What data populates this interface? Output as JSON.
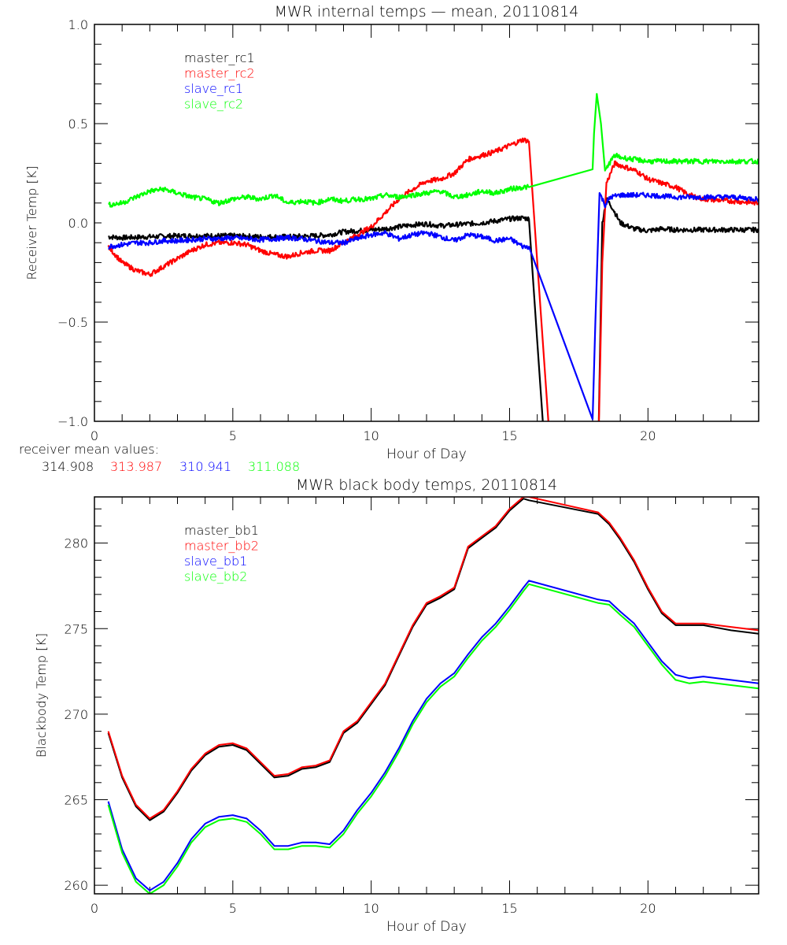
{
  "chart_data": [
    {
      "type": "line",
      "title": "MWR internal temps — mean, 20110814",
      "xlabel": "Hour of Day",
      "ylabel": "Receiver Temp [K]",
      "xlim": [
        0,
        24
      ],
      "ylim": [
        -1.0,
        1.0
      ],
      "xticks": [
        0,
        5,
        10,
        15,
        20
      ],
      "xtick_labels": [
        "0",
        "5",
        "10",
        "15",
        "20"
      ],
      "yticks": [
        -1.0,
        -0.5,
        0.0,
        0.5,
        1.0
      ],
      "ytick_labels": [
        "−1.0",
        "−0.5",
        "0.0",
        "0.5",
        "1.0"
      ],
      "grid": false,
      "legend_position": "top-left",
      "series": [
        {
          "name": "master_rc1",
          "color": "#000000",
          "x": [
            0.5,
            1,
            2,
            3,
            4,
            5,
            6,
            7,
            8,
            8.5,
            9,
            9.5,
            10,
            10.5,
            11,
            11.5,
            12,
            12.5,
            13,
            13.5,
            14,
            14.5,
            15,
            15.5,
            15.7,
            16.0,
            16.3,
            18.2,
            18.35,
            18.5,
            18.7,
            19,
            19.5,
            20,
            20.5,
            21,
            22,
            23,
            24
          ],
          "y": [
            -0.07,
            -0.075,
            -0.07,
            -0.065,
            -0.065,
            -0.065,
            -0.07,
            -0.07,
            -0.065,
            -0.06,
            -0.045,
            -0.04,
            -0.035,
            -0.03,
            -0.02,
            -0.01,
            -0.005,
            -0.015,
            -0.01,
            -0.005,
            0.0,
            0.01,
            0.02,
            0.025,
            0.02,
            -0.6,
            -1.2,
            -1.2,
            0.0,
            0.12,
            0.08,
            0.0,
            -0.03,
            -0.04,
            -0.03,
            -0.035,
            -0.035,
            -0.035,
            -0.035
          ]
        },
        {
          "name": "master_rc2",
          "color": "#ff0000",
          "x": [
            0.5,
            1,
            1.5,
            2,
            2.5,
            3,
            3.5,
            4,
            4.5,
            5,
            5.5,
            6,
            6.5,
            7,
            7.5,
            8,
            8.5,
            9,
            9.5,
            10,
            10.5,
            11,
            11.5,
            12,
            12.5,
            13,
            13.5,
            14,
            14.5,
            15,
            15.5,
            15.7,
            16.0,
            16.5,
            18.2,
            18.35,
            18.5,
            18.8,
            19.2,
            19.6,
            20,
            20.5,
            21,
            21.5,
            22,
            23,
            24
          ],
          "y": [
            -0.12,
            -0.2,
            -0.24,
            -0.26,
            -0.22,
            -0.18,
            -0.14,
            -0.11,
            -0.1,
            -0.1,
            -0.11,
            -0.14,
            -0.16,
            -0.17,
            -0.15,
            -0.14,
            -0.14,
            -0.1,
            -0.06,
            -0.02,
            0.05,
            0.12,
            0.17,
            0.21,
            0.22,
            0.25,
            0.32,
            0.34,
            0.36,
            0.39,
            0.42,
            0.41,
            -0.2,
            -1.2,
            -1.2,
            -0.2,
            0.2,
            0.3,
            0.28,
            0.26,
            0.22,
            0.2,
            0.18,
            0.14,
            0.12,
            0.11,
            0.1
          ]
        },
        {
          "name": "slave_rc1",
          "color": "#0000ff",
          "x": [
            0.5,
            1,
            1.5,
            2,
            2.5,
            3,
            3.5,
            4,
            4.5,
            5,
            5.5,
            6,
            6.5,
            7,
            7.5,
            8,
            8.5,
            9,
            9.5,
            10,
            10.5,
            11,
            11.5,
            12,
            12.5,
            13,
            13.5,
            14,
            14.5,
            15,
            15.5,
            15.7,
            18.0,
            18.1,
            18.25,
            18.45,
            18.65,
            19,
            19.5,
            20,
            21,
            22,
            23,
            24
          ],
          "y": [
            -0.12,
            -0.11,
            -0.1,
            -0.1,
            -0.09,
            -0.09,
            -0.085,
            -0.08,
            -0.08,
            -0.075,
            -0.08,
            -0.085,
            -0.08,
            -0.075,
            -0.08,
            -0.09,
            -0.1,
            -0.1,
            -0.08,
            -0.06,
            -0.05,
            -0.08,
            -0.06,
            -0.05,
            -0.07,
            -0.09,
            -0.06,
            -0.07,
            -0.09,
            -0.08,
            -0.12,
            -0.12,
            -0.99,
            -0.5,
            0.15,
            0.09,
            0.13,
            0.14,
            0.14,
            0.14,
            0.13,
            0.13,
            0.13,
            0.12
          ]
        },
        {
          "name": "slave_rc2",
          "color": "#00ff00",
          "x": [
            0.5,
            1,
            1.5,
            2,
            2.5,
            3,
            3.5,
            4,
            4.5,
            5,
            5.5,
            6,
            6.5,
            7,
            7.5,
            8,
            8.5,
            9,
            9.5,
            10,
            10.5,
            11,
            11.5,
            12,
            12.5,
            13,
            13.5,
            14,
            14.5,
            15,
            15.5,
            15.7,
            18.0,
            18.05,
            18.15,
            18.3,
            18.45,
            18.6,
            18.8,
            19,
            19.5,
            20,
            21,
            22,
            23,
            24
          ],
          "y": [
            0.09,
            0.1,
            0.13,
            0.16,
            0.17,
            0.15,
            0.13,
            0.12,
            0.1,
            0.12,
            0.13,
            0.12,
            0.14,
            0.1,
            0.11,
            0.1,
            0.12,
            0.11,
            0.12,
            0.12,
            0.14,
            0.13,
            0.14,
            0.15,
            0.16,
            0.13,
            0.14,
            0.16,
            0.15,
            0.17,
            0.18,
            0.18,
            0.27,
            0.45,
            0.65,
            0.5,
            0.26,
            0.3,
            0.34,
            0.33,
            0.32,
            0.31,
            0.31,
            0.31,
            0.31,
            0.31
          ]
        }
      ],
      "annotation": {
        "label": "receiver mean values:",
        "values": [
          {
            "series": "master_rc1",
            "text": "314.908",
            "color": "#000000"
          },
          {
            "series": "master_rc2",
            "text": "313.987",
            "color": "#ff0000"
          },
          {
            "series": "slave_rc1",
            "text": "310.941",
            "color": "#0000ff"
          },
          {
            "series": "slave_rc2",
            "text": "311.088",
            "color": "#00ff00"
          }
        ]
      }
    },
    {
      "type": "line",
      "title": "MWR black body temps, 20110814",
      "xlabel": "Hour of Day",
      "ylabel": "Blackbody Temp [K]",
      "xlim": [
        0,
        24
      ],
      "ylim": [
        259.5,
        282.7
      ],
      "xticks": [
        0,
        5,
        10,
        15,
        20
      ],
      "xtick_labels": [
        "0",
        "5",
        "10",
        "15",
        "20"
      ],
      "yticks": [
        260,
        265,
        270,
        275,
        280
      ],
      "ytick_labels": [
        "260",
        "265",
        "270",
        "275",
        "280"
      ],
      "grid": false,
      "legend_position": "top-left",
      "series": [
        {
          "name": "master_bb1",
          "color": "#000000",
          "x": [
            0.5,
            1,
            1.5,
            2,
            2.5,
            3,
            3.5,
            4,
            4.5,
            5,
            5.5,
            6,
            6.5,
            7,
            7.5,
            8,
            8.5,
            9,
            9.5,
            10,
            10.5,
            11,
            11.5,
            12,
            12.5,
            13,
            13.5,
            14,
            14.5,
            15,
            15.5,
            15.7,
            18.2,
            18.6,
            19,
            19.5,
            20,
            20.5,
            21,
            21.5,
            22,
            23,
            24
          ],
          "y": [
            268.9,
            266.3,
            264.6,
            263.8,
            264.3,
            265.4,
            266.7,
            267.6,
            268.1,
            268.2,
            267.9,
            267.1,
            266.3,
            266.4,
            266.8,
            266.9,
            267.2,
            268.9,
            269.5,
            270.6,
            271.7,
            273.4,
            275.1,
            276.4,
            276.8,
            277.3,
            279.7,
            280.3,
            280.9,
            281.9,
            282.6,
            282.5,
            281.7,
            281.1,
            280.2,
            278.9,
            277.3,
            275.9,
            275.2,
            275.2,
            275.2,
            274.9,
            274.7
          ]
        },
        {
          "name": "master_bb2",
          "color": "#ff0000",
          "x": [
            0.5,
            1,
            1.5,
            2,
            2.5,
            3,
            3.5,
            4,
            4.5,
            5,
            5.5,
            6,
            6.5,
            7,
            7.5,
            8,
            8.5,
            9,
            9.5,
            10,
            10.5,
            11,
            11.5,
            12,
            12.5,
            13,
            13.5,
            14,
            14.5,
            15,
            15.5,
            15.7,
            18.2,
            18.6,
            19,
            19.5,
            20,
            20.5,
            21,
            21.5,
            22,
            23,
            24
          ],
          "y": [
            269.0,
            266.4,
            264.7,
            263.9,
            264.4,
            265.5,
            266.8,
            267.7,
            268.2,
            268.3,
            268.0,
            267.2,
            266.4,
            266.5,
            266.9,
            267.0,
            267.3,
            269.0,
            269.6,
            270.7,
            271.8,
            273.5,
            275.2,
            276.5,
            276.9,
            277.4,
            279.8,
            280.4,
            281.0,
            282.0,
            282.7,
            282.7,
            281.8,
            281.2,
            280.3,
            279.0,
            277.4,
            276.0,
            275.3,
            275.3,
            275.3,
            275.1,
            274.9
          ]
        },
        {
          "name": "slave_bb1",
          "color": "#0000ff",
          "x": [
            0.5,
            1,
            1.5,
            2,
            2.5,
            3,
            3.5,
            4,
            4.5,
            5,
            5.5,
            6,
            6.5,
            7,
            7.5,
            8,
            8.5,
            9,
            9.5,
            10,
            10.5,
            11,
            11.5,
            12,
            12.5,
            13,
            13.5,
            14,
            14.5,
            15,
            15.5,
            15.7,
            18.2,
            18.6,
            19,
            19.5,
            20,
            20.5,
            21,
            21.5,
            22,
            23,
            24
          ],
          "y": [
            264.9,
            262.1,
            260.4,
            259.7,
            260.2,
            261.3,
            262.7,
            263.6,
            264.0,
            264.1,
            263.9,
            263.2,
            262.3,
            262.3,
            262.5,
            262.5,
            262.4,
            263.2,
            264.4,
            265.4,
            266.6,
            268.0,
            269.6,
            270.9,
            271.8,
            272.4,
            273.5,
            274.5,
            275.3,
            276.3,
            277.4,
            277.8,
            276.7,
            276.6,
            276.0,
            275.3,
            274.2,
            273.1,
            272.3,
            272.1,
            272.2,
            272.0,
            271.8
          ]
        },
        {
          "name": "slave_bb2",
          "color": "#00ff00",
          "x": [
            0.5,
            1,
            1.5,
            2,
            2.5,
            3,
            3.5,
            4,
            4.5,
            5,
            5.5,
            6,
            6.5,
            7,
            7.5,
            8,
            8.5,
            9,
            9.5,
            10,
            10.5,
            11,
            11.5,
            12,
            12.5,
            13,
            13.5,
            14,
            14.5,
            15,
            15.5,
            15.7,
            18.2,
            18.6,
            19,
            19.5,
            20,
            20.5,
            21,
            21.5,
            22,
            23,
            24
          ],
          "y": [
            264.7,
            261.9,
            260.2,
            259.5,
            260.0,
            261.1,
            262.5,
            263.4,
            263.8,
            263.9,
            263.7,
            263.0,
            262.1,
            262.1,
            262.3,
            262.3,
            262.2,
            263.0,
            264.2,
            265.2,
            266.4,
            267.8,
            269.4,
            270.7,
            271.6,
            272.2,
            273.3,
            274.3,
            275.1,
            276.1,
            277.2,
            277.6,
            276.5,
            276.4,
            275.8,
            275.1,
            274.0,
            272.9,
            272.0,
            271.8,
            271.9,
            271.7,
            271.5
          ]
        }
      ]
    }
  ]
}
